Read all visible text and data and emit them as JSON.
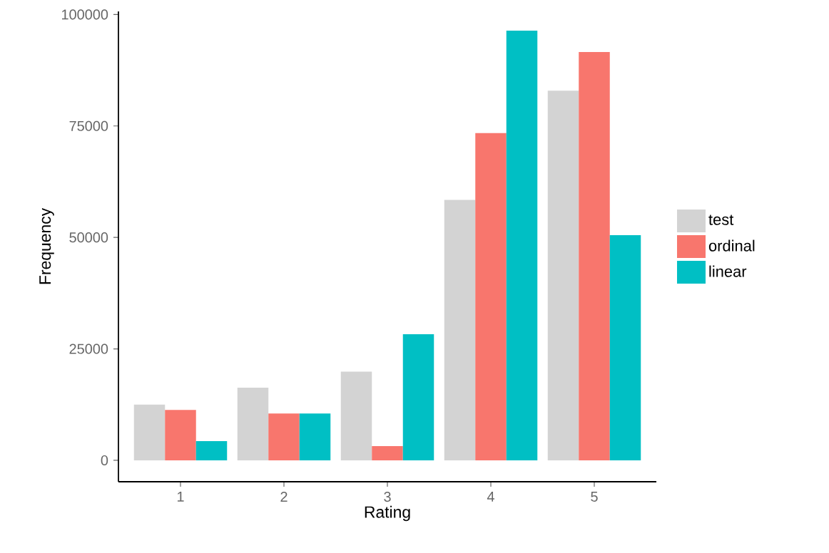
{
  "chart_data": {
    "type": "bar",
    "xlabel": "Rating",
    "ylabel": "Frequency",
    "categories": [
      "1",
      "2",
      "3",
      "4",
      "5"
    ],
    "series": [
      {
        "name": "test",
        "color": "#d3d3d3",
        "values": [
          12500,
          16300,
          19900,
          58400,
          82900
        ]
      },
      {
        "name": "ordinal",
        "color": "#f8766d",
        "values": [
          11300,
          10500,
          3200,
          73400,
          91600
        ]
      },
      {
        "name": "linear",
        "color": "#00bfc4",
        "values": [
          4300,
          10500,
          28300,
          96400,
          50500
        ]
      }
    ],
    "ylim": [
      -4800,
      100700
    ],
    "yticks": [
      0,
      25000,
      50000,
      75000,
      100000
    ],
    "grid": false,
    "legend": "right"
  }
}
